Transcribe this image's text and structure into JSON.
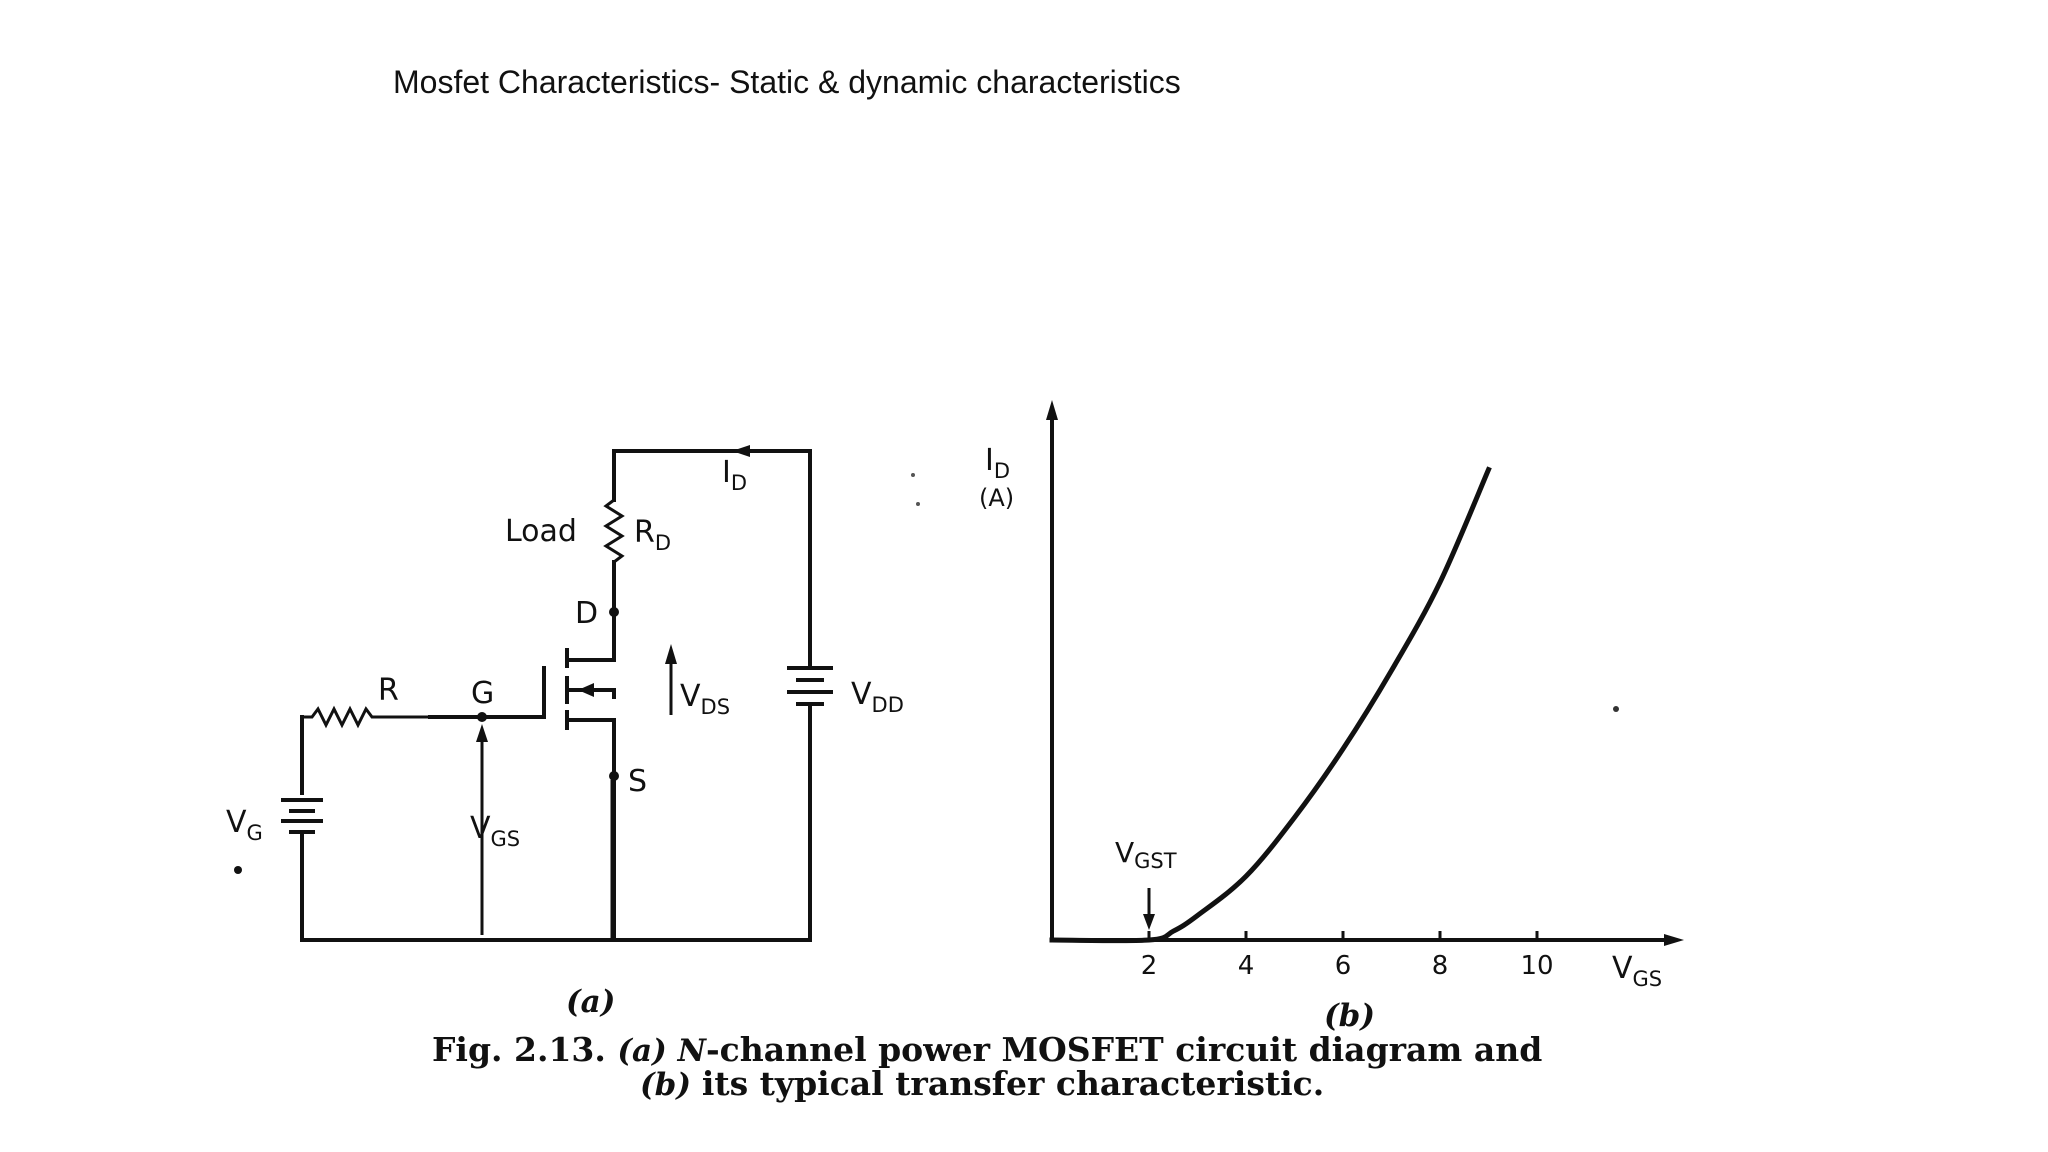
{
  "slide": {
    "title": "Mosfet Characteristics- Static & dynamic characteristics"
  },
  "circuit": {
    "load_label": "Load",
    "rd_label": "R",
    "rd_sub": "D",
    "id_label": "I",
    "id_sub": "D",
    "d_label": "D",
    "g_label": "G",
    "s_label": "S",
    "r_label": "R",
    "vds_label": "V",
    "vds_sub": "DS",
    "vdd_label": "V",
    "vdd_sub": "DD",
    "vg_label": "V",
    "vg_sub": "G",
    "vgs_label": "V",
    "vgs_sub": "GS",
    "part_label": "(a)"
  },
  "chart_data": {
    "type": "line",
    "ylabel": "I",
    "ylabel_sub": "D",
    "yunit": "(A)",
    "xlabel": "V",
    "xlabel_sub": "GS",
    "threshold_label": "V",
    "threshold_sub": "GST",
    "threshold": 2,
    "xticks": [
      2,
      4,
      6,
      8,
      10
    ],
    "xlim": [
      0,
      11.5
    ],
    "ylim": [
      0,
      1
    ],
    "series": [
      {
        "x": [
          0,
          2,
          2.5,
          3,
          4,
          5,
          6,
          7,
          8,
          9
        ],
        "y": [
          0,
          0,
          0.018,
          0.05,
          0.13,
          0.25,
          0.39,
          0.55,
          0.73,
          0.96
        ]
      }
    ],
    "part_label": "(b)"
  },
  "caption": {
    "line1_prefix": "Fig. 2.13. ",
    "line1_a": "(a) ",
    "line1_n": "N",
    "line1_rest": "-channel power MOSFET circuit diagram and",
    "line2_b": "(b) ",
    "line2_rest": "its typical transfer characteristic."
  }
}
